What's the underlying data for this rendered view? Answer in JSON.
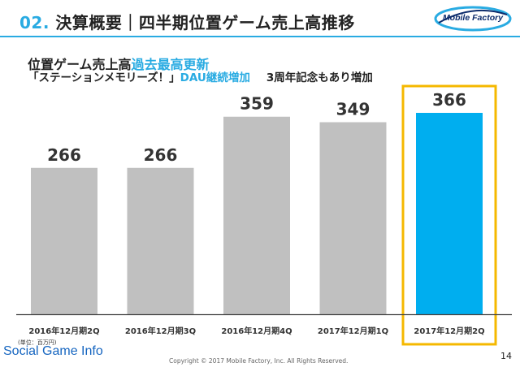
{
  "header": {
    "number": "02.",
    "title": "決算概要｜四半期位置ゲーム売上高推移",
    "logo_text": "Mobile Factory",
    "accent_color": "#29abe2"
  },
  "subtitle": {
    "line1_prefix": "位置ゲーム売上高",
    "line1_highlight": "過去最高更新",
    "line2_prefix": "「ステーションメモリーズ！」",
    "line2_highlight": "DAU継続増加",
    "line2_suffix": "3周年記念もあり増加"
  },
  "chart_data": {
    "type": "bar",
    "categories": [
      "2016年12月期2Q",
      "2016年12月期3Q",
      "2016年12月期4Q",
      "2017年12月期1Q",
      "2017年12月期2Q"
    ],
    "values": [
      266,
      266,
      359,
      349,
      366
    ],
    "data_labels": [
      "266",
      "266",
      "359",
      "349",
      "366"
    ],
    "bar_colors": [
      "#c0c0c0",
      "#c0c0c0",
      "#c0c0c0",
      "#c0c0c0",
      "#00aeef"
    ],
    "highlight_index": 4,
    "highlight_box_color": "#f5b800",
    "ylim": [
      0,
      400
    ],
    "grid": false,
    "legend": "none",
    "unit_note": "(単位：百万円)"
  },
  "footer": {
    "brand": "Social Game Info",
    "copyright": "Copyright © 2017 Mobile Factory, Inc. All Rights Reserved.",
    "page": "14"
  }
}
